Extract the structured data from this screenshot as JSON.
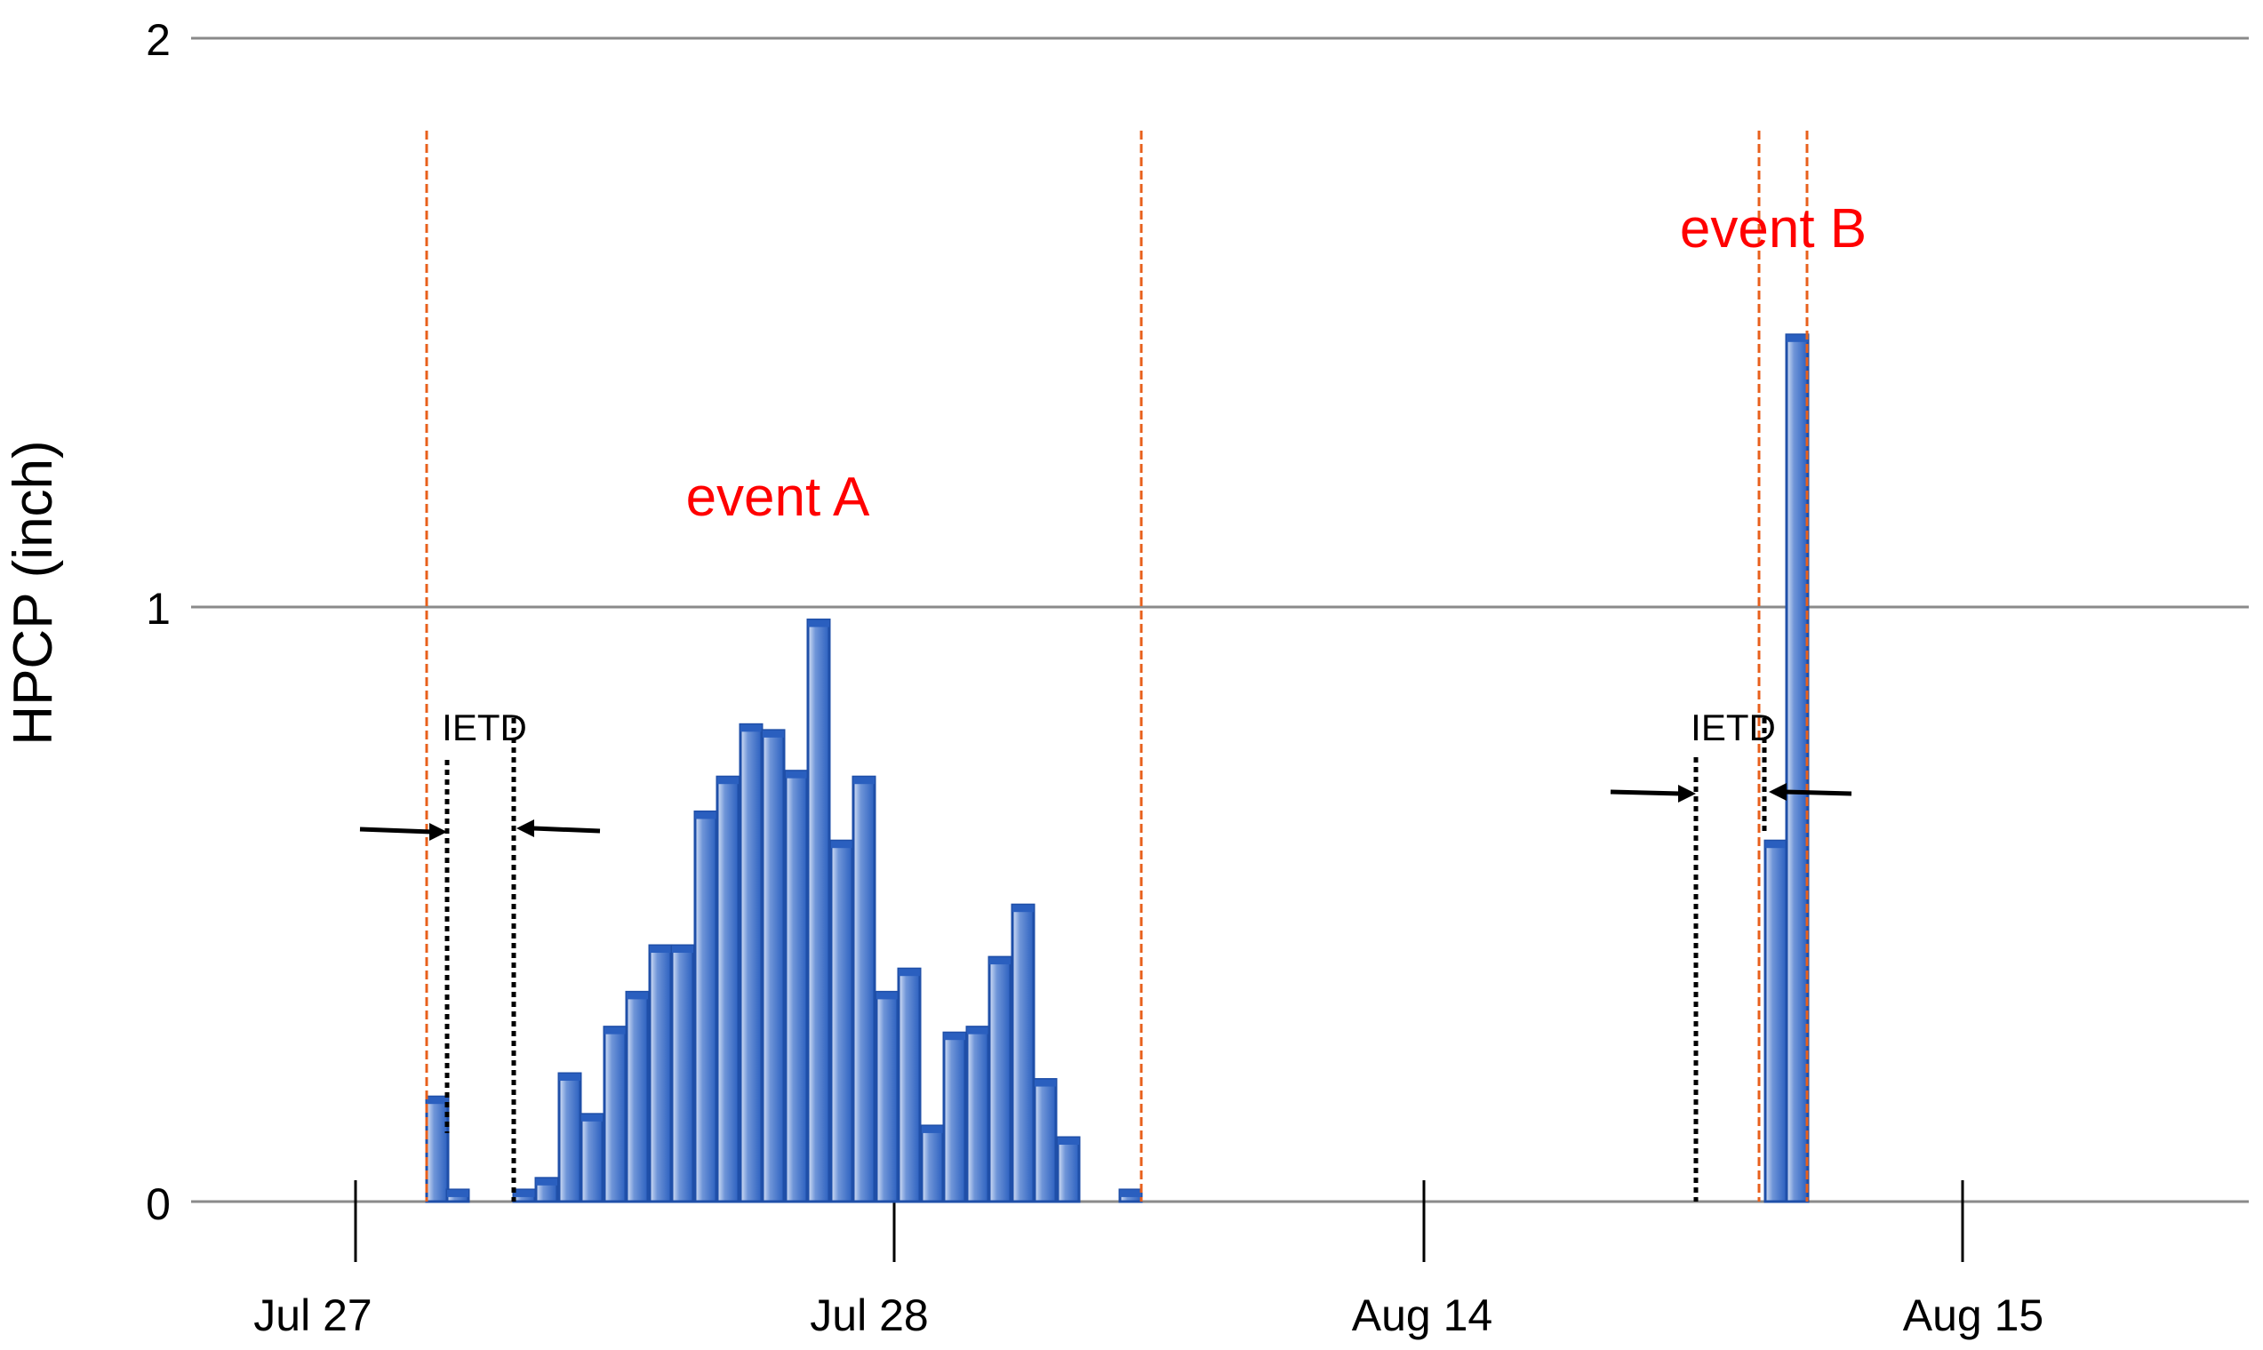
{
  "chart_data": {
    "type": "bar",
    "ylabel": "HPCP (inch)",
    "ylim": [
      0,
      2
    ],
    "yticks": [
      0,
      1,
      2
    ],
    "grid": true,
    "x_tick_labels": [
      "Jul 27",
      "Jul 28",
      "Aug 14",
      "Aug 15"
    ],
    "series": [
      {
        "values": [
          0.18,
          0.02,
          0.02,
          0.04,
          0.22,
          0.15,
          0.3,
          0.36,
          0.44,
          0.44,
          0.67,
          0.73,
          0.82,
          0.81,
          0.74,
          1.0,
          0.62,
          0.73,
          0.36,
          0.4,
          0.13,
          0.29,
          0.3,
          0.42,
          0.51,
          0.21,
          0.11,
          0.02,
          0.62,
          1.49
        ]
      }
    ],
    "annotations": {
      "event_a_label": "event A",
      "event_b_label": "event B",
      "ietd_a_label": "IETD",
      "ietd_b_label": "IETD"
    },
    "colors": {
      "bar_fill": "#2a5fbf",
      "bar_highlight": "#d9e4f7",
      "bar_edge": "#1f4fa8",
      "grid": "#8a8a8a",
      "event_boundary": "#e8601c",
      "event_label": "#ff0000",
      "ietd_line": "#000000"
    }
  }
}
